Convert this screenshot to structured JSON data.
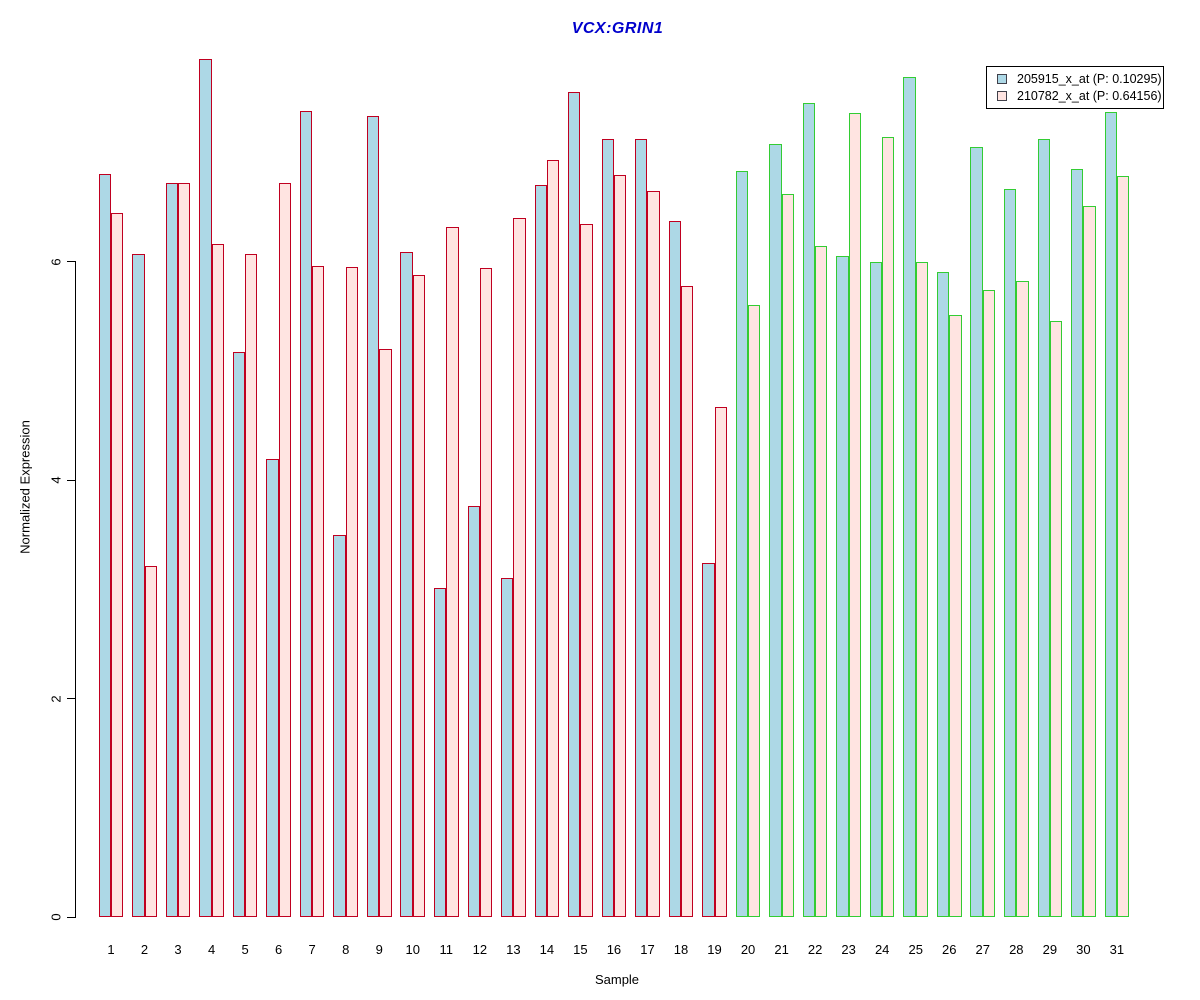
{
  "title": {
    "text": "VCX:GRIN1",
    "color": "#0000CC"
  },
  "y_axis": {
    "label": "Normalized Expression",
    "ticks": [
      "0",
      "2",
      "4",
      "6"
    ]
  },
  "x_axis": {
    "label": "Sample"
  },
  "legend": {
    "entries": [
      {
        "label": "205915_x_at (P: 0.10295)",
        "fill": "#ADD8E6"
      },
      {
        "label": "210782_x_at (P: 0.64156)",
        "fill": "#FFE4E1"
      }
    ]
  },
  "chart_data": {
    "type": "bar",
    "title": "VCX:GRIN1",
    "xlabel": "Sample",
    "ylabel": "Normalized Expression",
    "categories": [
      1,
      2,
      3,
      4,
      5,
      6,
      7,
      8,
      9,
      10,
      11,
      12,
      13,
      14,
      15,
      16,
      17,
      18,
      19,
      20,
      21,
      22,
      23,
      24,
      25,
      26,
      27,
      28,
      29,
      30,
      31
    ],
    "series": [
      {
        "name": "205915_x_at (P: 0.10295)",
        "fill": "#ADD8E6",
        "values": [
          6.8,
          6.07,
          6.72,
          7.85,
          5.17,
          4.19,
          7.38,
          3.5,
          7.33,
          6.09,
          3.01,
          3.76,
          3.1,
          6.7,
          7.55,
          7.12,
          7.12,
          6.37,
          3.24,
          6.83,
          7.08,
          7.45,
          6.05,
          6.0,
          7.69,
          5.9,
          7.05,
          6.66,
          7.12,
          6.85,
          7.37
        ]
      },
      {
        "name": "210782_x_at (P: 0.64156)",
        "fill": "#FFE4E1",
        "values": [
          6.44,
          3.21,
          6.72,
          6.16,
          6.07,
          6.72,
          5.96,
          5.95,
          5.2,
          5.88,
          6.32,
          5.94,
          6.4,
          6.93,
          6.34,
          6.79,
          6.65,
          5.78,
          4.67,
          5.6,
          6.62,
          6.14,
          7.36,
          7.14,
          6.0,
          5.51,
          5.74,
          5.82,
          5.46,
          6.51,
          6.78
        ]
      }
    ],
    "bar_border_groups": [
      {
        "first_sample": 1,
        "last_sample": 19,
        "border_color": "#C00020"
      },
      {
        "first_sample": 20,
        "last_sample": 31,
        "border_color": "#33CC33"
      }
    ],
    "y_ticks": [
      0,
      2,
      4,
      6
    ],
    "ylim": [
      0,
      7.94
    ],
    "grid": false,
    "legend_position": "top-right"
  }
}
